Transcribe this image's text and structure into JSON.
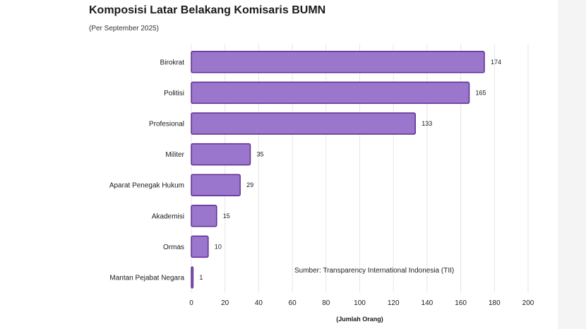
{
  "colors": {
    "bar_fill": "#9a76cc",
    "bar_stroke": "#5f2f92",
    "grid": "#e6e6e6"
  },
  "chart_data": {
    "type": "bar",
    "orientation": "horizontal",
    "title": "Komposisi Latar Belakang Komisaris BUMN",
    "subtitle": "(Per September 2025)",
    "categories": [
      "Birokrat",
      "Politisi",
      "Profesional",
      "Militer",
      "Aparat Penegak Hukum",
      "Akademisi",
      "Ormas",
      "Mantan Pejabat Negara"
    ],
    "values": [
      174,
      165,
      133,
      35,
      29,
      15,
      10,
      1
    ],
    "xlabel": "(Jumlah Orang)",
    "ylabel": "",
    "xlim": [
      0,
      200
    ],
    "xticks": [
      0,
      20,
      40,
      60,
      80,
      100,
      120,
      140,
      160,
      180,
      200
    ],
    "grid": "vertical",
    "annotation": "Sumber: Transparency International Indonesia (TII)"
  }
}
